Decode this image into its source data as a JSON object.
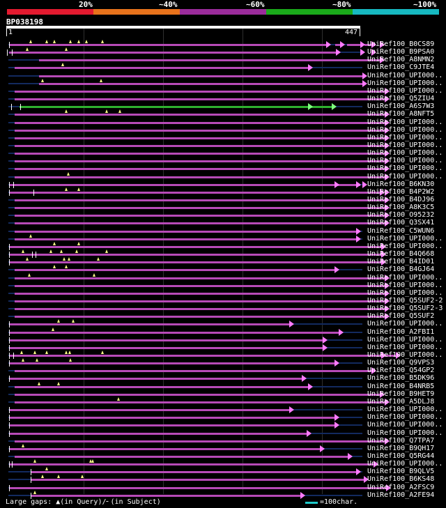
{
  "scale": {
    "percent_labels": [
      "20%",
      "~40%",
      "~60%",
      "~80%",
      "~100%"
    ],
    "colors": [
      "#e31a2f",
      "#e8731c",
      "#9b2c9b",
      "#1aaa1a",
      "#17b9c1"
    ]
  },
  "query": {
    "id": "BP038198",
    "start": "1",
    "end": "447",
    "length": 447
  },
  "footer": {
    "gaps_text": "Large gaps: ▲(in Query)/╴(in Subject)",
    "legend_text": "=100char."
  },
  "hits": [
    {
      "label": "UniRef100_B0CS89",
      "segments": [
        [
          3,
          403
        ],
        [
          413,
          420
        ],
        [
          428,
          446
        ],
        [
          450,
          460
        ]
      ],
      "ins": [
        30,
        50,
        60,
        80,
        90,
        100,
        120
      ],
      "ends": [
        403,
        420,
        446,
        460,
        470
      ],
      "ibars": [
        3
      ]
    },
    {
      "label": "UniRef100_B9PSA0",
      "segments": [
        [
          3,
          415
        ]
      ],
      "ins": [
        25,
        75
      ],
      "ends": [
        415,
        446,
        460
      ],
      "ibars": [
        0,
        6
      ]
    },
    {
      "label": "UniRef100_A8NMN2",
      "segments": [
        [
          40,
          470
        ]
      ],
      "ins": [],
      "ends": [
        470
      ],
      "ibars": []
    },
    {
      "label": "UniRef100_C9JTE4",
      "segments": [
        [
          10,
          380
        ]
      ],
      "ins": [
        70
      ],
      "ends": [
        380
      ],
      "ibars": []
    },
    {
      "label": "UniRef100_UPI000..",
      "segments": [
        [
          40,
          448
        ]
      ],
      "ins": [],
      "ends": [
        448
      ],
      "ibars": []
    },
    {
      "label": "UniRef100_UPI000..",
      "segments": [
        [
          40,
          448
        ]
      ],
      "ins": [
        45,
        118
      ],
      "ends": [
        448
      ],
      "ibars": []
    },
    {
      "label": "UniRef100_UPI000..",
      "segments": [
        [
          10,
          476
        ]
      ],
      "ins": [],
      "ends": [
        476
      ],
      "ibars": []
    },
    {
      "label": "UniRef100_Q5ZIU4",
      "segments": [
        [
          10,
          476
        ]
      ],
      "ins": [],
      "ends": [
        476
      ],
      "ibars": []
    },
    {
      "label": "UniRef100_A6S7W3",
      "segments": [
        [
          16,
          410
        ]
      ],
      "ins": [],
      "ends": [
        380,
        410
      ],
      "ibars": [
        5,
        17
      ],
      "green": true
    },
    {
      "label": "UniRef100_A8NFT5",
      "segments": [
        [
          10,
          476
        ]
      ],
      "ins": [
        75,
        125,
        142
      ],
      "ends": [
        476
      ],
      "ibars": []
    },
    {
      "label": "UniRef100_UPI000..",
      "segments": [
        [
          10,
          476
        ]
      ],
      "ins": [],
      "ends": [
        476
      ],
      "ibars": []
    },
    {
      "label": "UniRef100_UPI000..",
      "segments": [
        [
          10,
          476
        ]
      ],
      "ins": [],
      "ends": [
        476
      ],
      "ibars": []
    },
    {
      "label": "UniRef100_UPI000..",
      "segments": [
        [
          10,
          476
        ]
      ],
      "ins": [],
      "ends": [
        476
      ],
      "ibars": []
    },
    {
      "label": "UniRef100_UPI000..",
      "segments": [
        [
          10,
          476
        ]
      ],
      "ins": [],
      "ends": [
        476
      ],
      "ibars": []
    },
    {
      "label": "UniRef100_UPI000..",
      "segments": [
        [
          10,
          476
        ]
      ],
      "ins": [],
      "ends": [
        476
      ],
      "ibars": []
    },
    {
      "label": "UniRef100_UPI000..",
      "segments": [
        [
          10,
          476
        ]
      ],
      "ins": [],
      "ends": [
        476
      ],
      "ibars": []
    },
    {
      "label": "UniRef100_UPI000..",
      "segments": [
        [
          10,
          476
        ]
      ],
      "ins": [],
      "ends": [
        476
      ],
      "ibars": []
    },
    {
      "label": "UniRef100_UPI000..",
      "segments": [
        [
          10,
          476
        ]
      ],
      "ins": [
        77
      ],
      "ends": [
        476
      ],
      "ibars": []
    },
    {
      "label": "UniRef100_B6KN30",
      "segments": [
        [
          3,
          445
        ]
      ],
      "ins": [],
      "ends": [
        413,
        440,
        448
      ],
      "ibars": [
        3,
        8
      ]
    },
    {
      "label": "UniRef100_B4P2W2",
      "segments": [
        [
          3,
          470
        ]
      ],
      "ins": [
        75,
        90
      ],
      "ends": [
        470,
        476
      ],
      "ibars": [
        3,
        33
      ]
    },
    {
      "label": "UniRef100_B4DJ96",
      "segments": [
        [
          10,
          476
        ]
      ],
      "ins": [],
      "ends": [
        476
      ],
      "ibars": []
    },
    {
      "label": "UniRef100_A8K3C5",
      "segments": [
        [
          10,
          476
        ]
      ],
      "ins": [],
      "ends": [
        476
      ],
      "ibars": []
    },
    {
      "label": "UniRef100_O95232",
      "segments": [
        [
          10,
          476
        ]
      ],
      "ins": [],
      "ends": [
        476
      ],
      "ibars": []
    },
    {
      "label": "UniRef100_Q3SX41",
      "segments": [
        [
          10,
          476
        ]
      ],
      "ins": [],
      "ends": [
        476
      ],
      "ibars": []
    },
    {
      "label": "UniRef100_C5WUN6",
      "segments": [
        [
          10,
          440
        ]
      ],
      "ins": [],
      "ends": [
        440
      ],
      "ibars": []
    },
    {
      "label": "UniRef100_UPI000..",
      "segments": [
        [
          10,
          440
        ]
      ],
      "ins": [
        30
      ],
      "ends": [
        440
      ],
      "ibars": []
    },
    {
      "label": "UniRef100_UPI000..",
      "segments": [
        [
          3,
          472
        ]
      ],
      "ins": [
        60,
        90
      ],
      "ends": [
        472
      ],
      "ibars": [
        3
      ]
    },
    {
      "label": "UniRef100_B4Q668",
      "segments": [
        [
          3,
          472
        ]
      ],
      "ins": [
        20,
        55,
        68,
        88,
        125
      ],
      "ends": [
        472
      ],
      "ibars": [
        3,
        32,
        36
      ]
    },
    {
      "label": "UniRef100_B4ID01",
      "segments": [
        [
          3,
          472
        ]
      ],
      "ins": [
        25,
        72,
        78,
        115
      ],
      "ends": [
        472
      ],
      "ibars": [
        3
      ]
    },
    {
      "label": "UniRef100_B4GJ64",
      "segments": [
        [
          10,
          413
        ]
      ],
      "ins": [
        60,
        75
      ],
      "ends": [
        413
      ],
      "ibars": []
    },
    {
      "label": "UniRef100_UPI000..",
      "segments": [
        [
          10,
          476
        ]
      ],
      "ins": [
        28,
        110
      ],
      "ends": [
        476
      ],
      "ibars": []
    },
    {
      "label": "UniRef100_UPI000..",
      "segments": [
        [
          10,
          476
        ]
      ],
      "ins": [],
      "ends": [
        476
      ],
      "ibars": []
    },
    {
      "label": "UniRef100_UPI000..",
      "segments": [
        [
          10,
          476
        ]
      ],
      "ins": [],
      "ends": [
        476
      ],
      "ibars": []
    },
    {
      "label": "UniRef100_Q5SUF2-2",
      "segments": [
        [
          10,
          476
        ]
      ],
      "ins": [],
      "ends": [
        476
      ],
      "ibars": []
    },
    {
      "label": "UniRef100_Q5SUF2-3",
      "segments": [
        [
          10,
          476
        ]
      ],
      "ins": [],
      "ends": [
        476
      ],
      "ibars": []
    },
    {
      "label": "UniRef100_Q5SUF2",
      "segments": [
        [
          10,
          476
        ]
      ],
      "ins": [],
      "ends": [
        476
      ],
      "ibars": []
    },
    {
      "label": "UniRef100_UPI000..",
      "segments": [
        [
          3,
          356
        ]
      ],
      "ins": [
        65,
        83
      ],
      "ends": [
        356
      ],
      "ibars": [
        3
      ]
    },
    {
      "label": "UniRef100_A2FBI1",
      "segments": [
        [
          3,
          418
        ]
      ],
      "ins": [
        58
      ],
      "ends": [
        418
      ],
      "ibars": [
        3
      ]
    },
    {
      "label": "UniRef100_UPI000..",
      "segments": [
        [
          3,
          398
        ]
      ],
      "ins": [],
      "ends": [
        398
      ],
      "ibars": [
        3
      ]
    },
    {
      "label": "UniRef100_UPI000..",
      "segments": [
        [
          3,
          398
        ]
      ],
      "ins": [],
      "ends": [
        398
      ],
      "ibars": [
        3
      ]
    },
    {
      "label": "UniRef100_UPI000..",
      "segments": [
        [
          3,
          490
        ]
      ],
      "ins": [
        18,
        35,
        50,
        75,
        79,
        120
      ],
      "ends": [
        472,
        490
      ],
      "ibars": [
        3,
        8
      ]
    },
    {
      "label": "UniRef100_Q9VPS3",
      "segments": [
        [
          3,
          413
        ]
      ],
      "ins": [
        20,
        38,
        80
      ],
      "ends": [
        413
      ],
      "ibars": [
        3
      ]
    },
    {
      "label": "UniRef100_Q54GP2",
      "segments": [
        [
          10,
          460
        ]
      ],
      "ins": [],
      "ends": [
        460
      ],
      "ibars": []
    },
    {
      "label": "UniRef100_B5DK96",
      "segments": [
        [
          3,
          372
        ]
      ],
      "ins": [],
      "ends": [
        372
      ],
      "ibars": [
        3
      ]
    },
    {
      "label": "UniRef100_B4NRB5",
      "segments": [
        [
          10,
          380
        ]
      ],
      "ins": [
        40,
        65
      ],
      "ends": [
        380
      ],
      "ibars": []
    },
    {
      "label": "UniRef100_B9HET9",
      "segments": [
        [
          10,
          470
        ]
      ],
      "ins": [],
      "ends": [
        470
      ],
      "ibars": []
    },
    {
      "label": "UniRef100_A5DLJ8",
      "segments": [
        [
          10,
          476
        ]
      ],
      "ins": [
        140
      ],
      "ends": [
        476
      ],
      "ibars": []
    },
    {
      "label": "UniRef100_UPI000..",
      "segments": [
        [
          3,
          356
        ]
      ],
      "ins": [],
      "ends": [
        356
      ],
      "ibars": [
        3
      ]
    },
    {
      "label": "UniRef100_UPI000..",
      "segments": [
        [
          3,
          413
        ]
      ],
      "ins": [],
      "ends": [
        413
      ],
      "ibars": [
        3
      ]
    },
    {
      "label": "UniRef100_UPI000..",
      "segments": [
        [
          3,
          413
        ]
      ],
      "ins": [],
      "ends": [
        413
      ],
      "ibars": [
        3
      ]
    },
    {
      "label": "UniRef100_UPI000..",
      "segments": [
        [
          3,
          378
        ]
      ],
      "ins": [],
      "ends": [
        378
      ],
      "ibars": [
        3
      ]
    },
    {
      "label": "UniRef100_Q7TPA7",
      "segments": [
        [
          10,
          476
        ]
      ],
      "ins": [],
      "ends": [
        476
      ],
      "ibars": []
    },
    {
      "label": "UniRef100_B9QH17",
      "segments": [
        [
          3,
          395
        ]
      ],
      "ins": [
        20
      ],
      "ends": [
        395
      ],
      "ibars": [
        3
      ]
    },
    {
      "label": "UniRef100_Q5RG44",
      "segments": [
        [
          10,
          430
        ]
      ],
      "ins": [],
      "ends": [
        430
      ],
      "ibars": []
    },
    {
      "label": "UniRef100_UPI000..",
      "segments": [
        [
          3,
          462
        ]
      ],
      "ins": [
        35,
        105,
        108
      ],
      "ends": [
        462
      ],
      "ibars": [
        3,
        6
      ]
    },
    {
      "label": "UniRef100_B9QLV5",
      "segments": [
        [
          30,
          440
        ]
      ],
      "ins": [
        50
      ],
      "ends": [
        440
      ],
      "ibars": [
        30
      ]
    },
    {
      "label": "UniRef100_B6KS48",
      "segments": [
        [
          30,
          450
        ]
      ],
      "ins": [
        45,
        65,
        95
      ],
      "ends": [
        450
      ],
      "ibars": [
        30
      ]
    },
    {
      "label": "UniRef100_A2FSC9",
      "segments": [
        [
          3,
          478
        ]
      ],
      "ins": [],
      "ends": [
        478
      ],
      "ibars": [
        3
      ]
    },
    {
      "label": "UniRef100_A2FE94",
      "segments": [
        [
          30,
          370
        ]
      ],
      "ins": [
        35
      ],
      "ends": [
        370
      ],
      "ibars": [
        30
      ]
    }
  ]
}
